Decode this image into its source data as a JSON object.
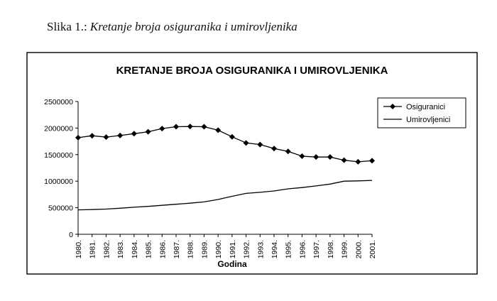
{
  "caption": {
    "prefix": "Slika 1.:",
    "text": "Kretanje broja osiguranika i umirovljenika"
  },
  "chart_data": {
    "type": "line",
    "title": "KRETANJE BROJA OSIGURANIKA I UMIROVLJENIKA",
    "xlabel": "Godina",
    "ylabel": "",
    "ylim": [
      0,
      2500000
    ],
    "yticks": [
      0,
      500000,
      1000000,
      1500000,
      2000000,
      2500000
    ],
    "categories": [
      "1980.",
      "1981.",
      "1982.",
      "1983.",
      "1984.",
      "1985.",
      "1986.",
      "1987.",
      "1988.",
      "1989.",
      "1990.",
      "1991.",
      "1992.",
      "1993.",
      "1994.",
      "1995.",
      "1996.",
      "1997.",
      "1998.",
      "1999.",
      "2000.",
      "2001."
    ],
    "grid": false,
    "legend_position": "right",
    "series": [
      {
        "name": "Osiguranici",
        "marker": "diamond",
        "values": [
          1820000,
          1855000,
          1830000,
          1860000,
          1895000,
          1930000,
          1990000,
          2025000,
          2030000,
          2025000,
          1960000,
          1835000,
          1720000,
          1690000,
          1615000,
          1560000,
          1470000,
          1455000,
          1455000,
          1395000,
          1365000,
          1385000
        ]
      },
      {
        "name": "Umirovljenici",
        "marker": "none",
        "values": [
          460000,
          465000,
          475000,
          490000,
          510000,
          525000,
          545000,
          565000,
          585000,
          610000,
          655000,
          715000,
          770000,
          790000,
          815000,
          855000,
          880000,
          910000,
          945000,
          1000000,
          1005000,
          1015000
        ]
      }
    ],
    "colors": {
      "line": "#000000",
      "frame": "#000000"
    }
  }
}
